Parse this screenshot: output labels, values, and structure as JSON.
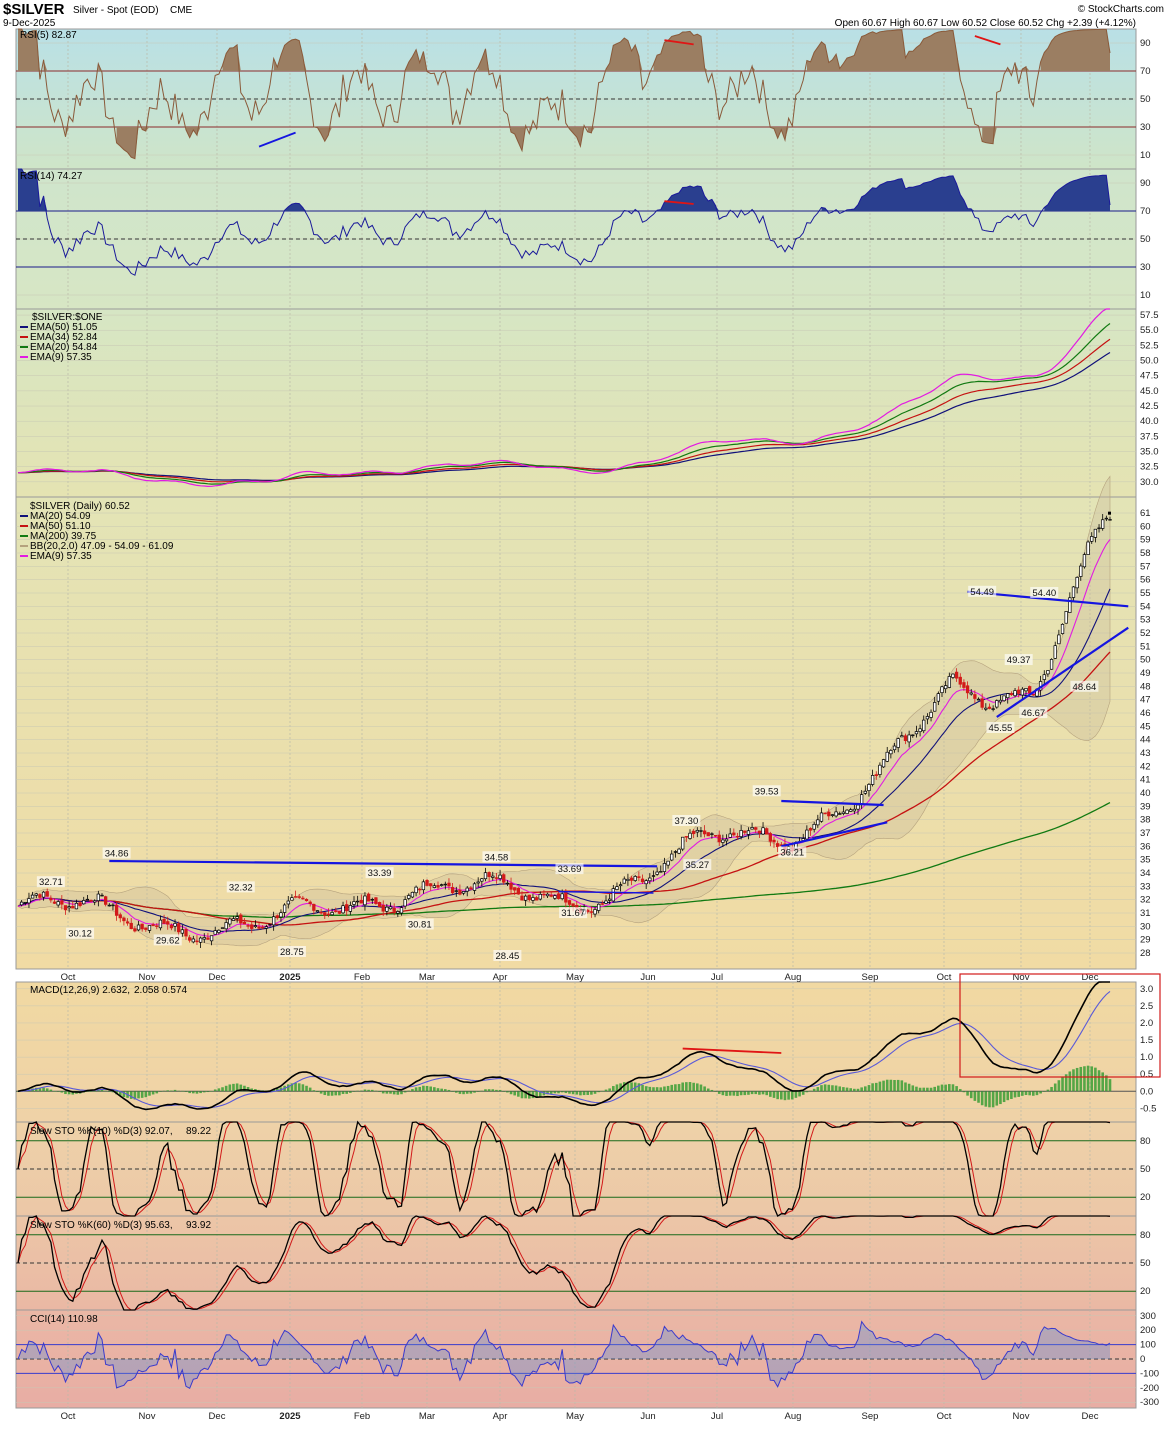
{
  "header": {
    "symbol": "$SILVER",
    "description": "Silver - Spot (EOD)",
    "exchange": "CME",
    "date": "9-Dec-2025",
    "watermark": "© StockCharts.com",
    "ohlc_line": "Open 60.67  High 60.67  Low 60.52  Close 60.52  Chg +2.39 (+4.12%)",
    "change_color": "#d62728"
  },
  "x_axis": {
    "months": [
      "Oct",
      "Nov",
      "Dec",
      "2025",
      "Feb",
      "Mar",
      "Apr",
      "May",
      "Jun",
      "Jul",
      "Aug",
      "Sep",
      "Oct",
      "Nov",
      "Dec"
    ]
  },
  "colors": {
    "rsi_fill": "#9b7e62",
    "rsi14_fill": "#2a3f8f",
    "trendline": "#1515e0",
    "divergence": "#e01515",
    "ma20": "#11117a",
    "ma50": "#c51212",
    "ma200": "#127a12",
    "ema9": "#e21ae2",
    "candle_up": "#000000",
    "candle_down": "#d21a1a",
    "hist": "#2e9a2e"
  },
  "panels": {
    "rsi5": {
      "label": "RSI(5) 82.87",
      "ticks": [
        "90",
        "70",
        "50",
        "30",
        "10"
      ]
    },
    "rsi14": {
      "label": "RSI(14) 74.27",
      "ticks": [
        "90",
        "70",
        "50",
        "30",
        "10"
      ]
    },
    "ema": {
      "title": "$SILVER:$ONE",
      "legend": [
        "EMA(50) 51.05",
        "EMA(34) 52.84",
        "EMA(20) 54.84",
        "EMA(9) 57.35"
      ],
      "ticks": [
        "57.5",
        "55.0",
        "52.5",
        "50.0",
        "47.5",
        "45.0",
        "42.5",
        "40.0",
        "37.5",
        "35.0",
        "32.5",
        "30.0"
      ]
    },
    "price": {
      "title": "$SILVER (Daily) 60.52",
      "legend": [
        "MA(20) 54.09",
        "MA(50) 51.10",
        "MA(200) 39.75",
        "BB(20,2.0) 47.09 - 54.09 - 61.09",
        "EMA(9) 57.35"
      ],
      "ticks": [
        "61",
        "60",
        "59",
        "58",
        "57",
        "56",
        "55",
        "54",
        "53",
        "52",
        "51",
        "50",
        "49",
        "48",
        "47",
        "46",
        "45",
        "44",
        "43",
        "42",
        "41",
        "40",
        "39",
        "38",
        "37",
        "36",
        "35",
        "34",
        "33",
        "32",
        "31",
        "30",
        "29",
        "28"
      ],
      "annotations": [
        "32.71",
        "30.12",
        "34.86",
        "29.62",
        "32.32",
        "28.75",
        "33.39",
        "30.81",
        "34.58",
        "28.45",
        "33.69",
        "31.67",
        "37.30",
        "35.27",
        "39.53",
        "36.21",
        "54.49",
        "49.37",
        "45.55",
        "46.67",
        "54.40",
        "48.64"
      ]
    },
    "macd": {
      "label_main": "MACD(12,26,9) 2.632,",
      "label_signal": "2.058",
      "label_hist": "0.574",
      "ticks": [
        "3.0",
        "2.5",
        "2.0",
        "1.5",
        "1.0",
        "0.5",
        "0.0",
        "-0.5"
      ]
    },
    "sto10": {
      "label_main": "Slow STO %K(10) %D(3) 92.07,",
      "label_d": "89.22",
      "ticks": [
        "80",
        "50",
        "20"
      ]
    },
    "sto60": {
      "label_main": "Slow STO %K(60) %D(3) 95.63,",
      "label_d": "93.92",
      "ticks": [
        "80",
        "50",
        "20"
      ]
    },
    "cci": {
      "label": "CCI(14) 110.98",
      "ticks": [
        "300",
        "200",
        "100",
        "0",
        "-100",
        "-200",
        "-300"
      ]
    }
  },
  "chart_data": {
    "type": "candlestick",
    "title": "$SILVER (Daily) 60.52",
    "x_range": [
      "2024-10",
      "2025-12-09"
    ],
    "ylim": [
      28,
      61
    ],
    "price_path_months": [
      "Oct",
      "Nov",
      "Dec",
      "2025",
      "Feb",
      "Mar",
      "Apr",
      "May",
      "Jun",
      "Jul",
      "Aug",
      "Sep",
      "Oct",
      "Nov",
      "Dec"
    ],
    "price_path_values": [
      31.5,
      31.0,
      30.5,
      29.5,
      31.5,
      33.0,
      32.5,
      32.2,
      33.5,
      36.5,
      37.5,
      40.5,
      48.0,
      48.0,
      60.52
    ],
    "close": 60.52,
    "open": 60.67,
    "high": 60.67,
    "low": 60.52,
    "change": 2.39,
    "change_pct": 4.12,
    "ma20": 54.09,
    "ma50": 51.1,
    "ma200": 39.75,
    "ema9": 57.35,
    "bb": [
      47.09,
      54.09,
      61.09
    ],
    "rsi5": 82.87,
    "rsi14": 74.27,
    "macd": [
      2.632,
      2.058,
      0.574
    ],
    "sto10": [
      92.07,
      89.22
    ],
    "sto60": [
      95.63,
      93.92
    ],
    "cci14": 110.98,
    "ema_silver_one": {
      "ema50": 51.05,
      "ema34": 52.84,
      "ema20": 54.84,
      "ema9": 57.35
    },
    "legend": "top-left",
    "grid": true
  }
}
